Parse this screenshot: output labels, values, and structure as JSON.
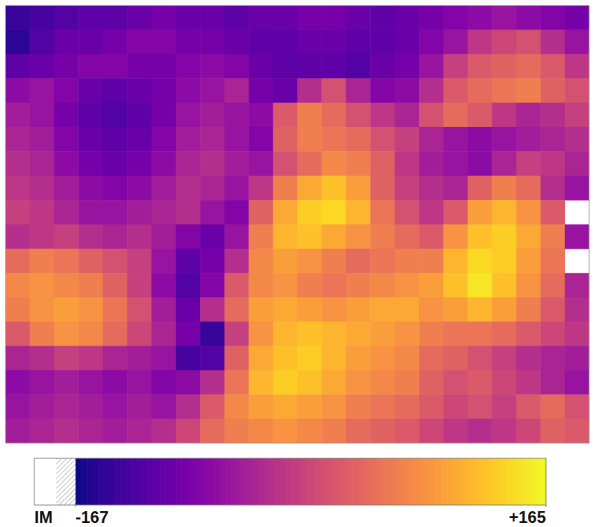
{
  "chart_data": {
    "type": "heatmap",
    "tick_labels": false,
    "cells": [
      [
        -140,
        -130,
        -120,
        -110,
        -110,
        -100,
        -90,
        -100,
        -100,
        -110,
        -100,
        -100,
        -90,
        -90,
        -100,
        -110,
        -100,
        -90,
        -80,
        -70,
        -60,
        -70,
        -80,
        -90
      ],
      [
        -150,
        -120,
        -100,
        -100,
        -90,
        -80,
        -80,
        -90,
        -90,
        -100,
        -110,
        -110,
        -100,
        -100,
        -110,
        -110,
        -100,
        -80,
        -60,
        -20,
        0,
        10,
        -30,
        -60
      ],
      [
        -110,
        -100,
        -90,
        -80,
        -80,
        -90,
        -90,
        -80,
        -70,
        -80,
        -100,
        -110,
        -110,
        -110,
        -120,
        -100,
        -90,
        -60,
        -10,
        20,
        30,
        40,
        20,
        -20
      ],
      [
        -70,
        -60,
        -80,
        -100,
        -110,
        -100,
        -90,
        -70,
        -60,
        -40,
        -90,
        -100,
        -30,
        10,
        -40,
        -80,
        -70,
        -30,
        20,
        40,
        50,
        60,
        30,
        10
      ],
      [
        -50,
        -60,
        -90,
        -110,
        -120,
        -110,
        -90,
        -60,
        -50,
        -60,
        -70,
        20,
        60,
        40,
        10,
        -20,
        -40,
        10,
        40,
        20,
        -20,
        -40,
        -30,
        -10
      ],
      [
        -40,
        -50,
        -80,
        -100,
        -110,
        -100,
        -80,
        -50,
        -40,
        -60,
        -80,
        30,
        60,
        50,
        40,
        10,
        -10,
        -40,
        -60,
        -70,
        -60,
        -50,
        -40,
        -30
      ],
      [
        -30,
        -40,
        -70,
        -90,
        -100,
        -90,
        -70,
        -40,
        -30,
        -50,
        -60,
        10,
        40,
        70,
        60,
        30,
        -20,
        -50,
        -60,
        -70,
        -40,
        -10,
        -20,
        -40
      ],
      [
        -20,
        -30,
        -50,
        -70,
        -80,
        -70,
        -50,
        -30,
        -40,
        -60,
        -20,
        60,
        100,
        120,
        90,
        30,
        -10,
        -30,
        -40,
        30,
        60,
        40,
        -30,
        -60
      ],
      [
        -10,
        -20,
        -40,
        -60,
        -60,
        -50,
        -40,
        -30,
        -60,
        -80,
        30,
        100,
        130,
        140,
        110,
        50,
        10,
        -20,
        20,
        90,
        110,
        80,
        20,
        null
      ],
      [
        -30,
        -20,
        -10,
        -30,
        -40,
        -30,
        -50,
        -80,
        -100,
        -60,
        60,
        110,
        120,
        100,
        80,
        60,
        40,
        20,
        80,
        120,
        130,
        100,
        60,
        -60
      ],
      [
        40,
        60,
        50,
        30,
        10,
        -10,
        -60,
        -110,
        -90,
        -30,
        70,
        90,
        80,
        60,
        40,
        50,
        60,
        60,
        110,
        140,
        130,
        90,
        50,
        null
      ],
      [
        70,
        80,
        70,
        60,
        30,
        -10,
        -70,
        -120,
        -80,
        20,
        70,
        80,
        60,
        50,
        60,
        70,
        80,
        90,
        120,
        150,
        120,
        80,
        40,
        -40
      ],
      [
        60,
        80,
        90,
        80,
        50,
        10,
        -50,
        -100,
        -30,
        40,
        90,
        100,
        90,
        80,
        90,
        100,
        100,
        80,
        90,
        110,
        90,
        60,
        20,
        -30
      ],
      [
        20,
        60,
        80,
        70,
        40,
        0,
        -40,
        -90,
        -140,
        -10,
        80,
        110,
        120,
        110,
        100,
        90,
        80,
        60,
        50,
        50,
        40,
        20,
        0,
        -20
      ],
      [
        -40,
        -30,
        -10,
        -20,
        -40,
        -50,
        -60,
        -130,
        -120,
        30,
        100,
        120,
        130,
        110,
        90,
        80,
        70,
        40,
        30,
        10,
        -10,
        -30,
        -40,
        -50
      ],
      [
        -70,
        -60,
        -50,
        -60,
        -70,
        -60,
        -80,
        -70,
        -30,
        50,
        110,
        130,
        120,
        100,
        80,
        70,
        60,
        30,
        10,
        20,
        0,
        -20,
        -40,
        -60
      ],
      [
        -60,
        -50,
        -40,
        -50,
        -60,
        -50,
        -60,
        -30,
        20,
        70,
        90,
        100,
        90,
        80,
        60,
        50,
        40,
        20,
        0,
        10,
        -10,
        20,
        40,
        10
      ],
      [
        -50,
        -40,
        -30,
        -40,
        -50,
        -40,
        -30,
        0,
        40,
        60,
        70,
        80,
        70,
        60,
        40,
        30,
        20,
        0,
        -20,
        -30,
        -20,
        0,
        30,
        20
      ]
    ],
    "colorbar_range": [
      -167,
      165
    ],
    "colorbar_ticks": [
      -167,
      {
        "value": 165,
        "label": "+165"
      }
    ],
    "colorbar_missing_label": "IM"
  }
}
